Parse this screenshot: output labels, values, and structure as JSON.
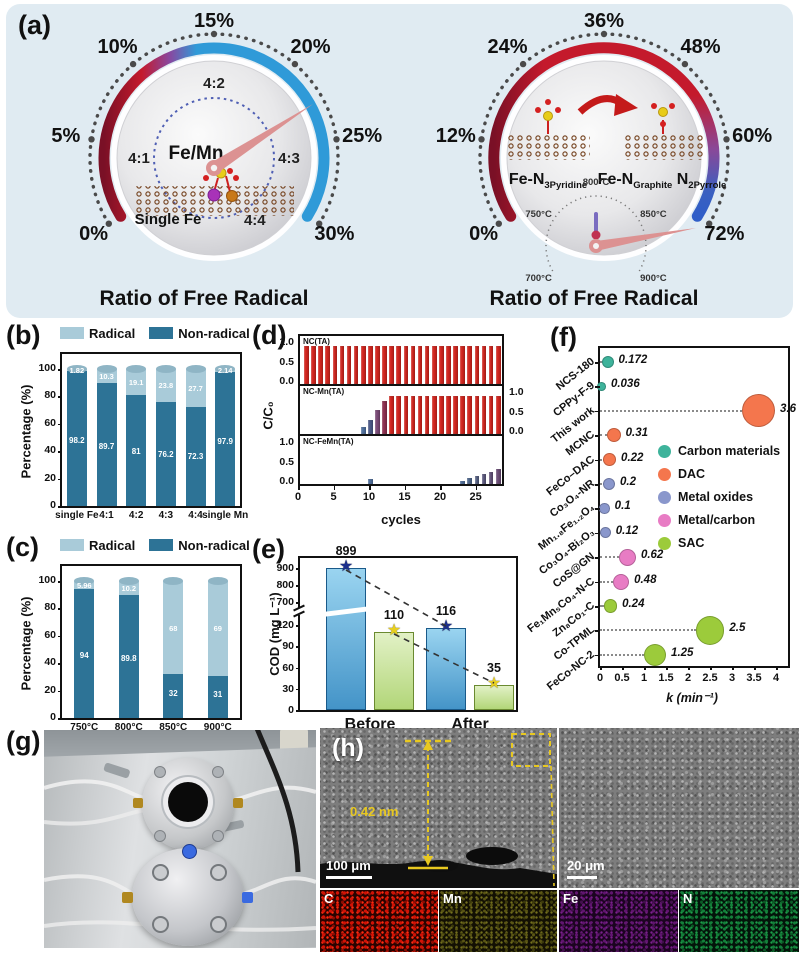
{
  "panel_labels": {
    "a": "(a)",
    "b": "(b)",
    "c": "(c)",
    "d": "(d)",
    "e": "(e)",
    "f": "(f)",
    "g": "(g)",
    "h": "(h)"
  },
  "gauges": {
    "left": {
      "title": "Ratio of Free Radical",
      "outer_ticks": [
        "0%",
        "5%",
        "10%",
        "15%",
        "20%",
        "25%",
        "30%"
      ],
      "inner_ticks": [
        "4:1",
        "4:2",
        "4:3",
        "4:4"
      ],
      "center_label": "Fe/Mn",
      "bottom_label": "Single Fe"
    },
    "right": {
      "title": "Ratio of Free Radical",
      "outer_ticks": [
        "0%",
        "12%",
        "24%",
        "36%",
        "48%",
        "60%",
        "72%"
      ],
      "site1": {
        "pre": "Fe-N",
        "sub": "3Pyridine"
      },
      "site2": {
        "pre": "Fe-N",
        "sub": "Graphite",
        "pre2": " N",
        "sub2": "2Pyrrole"
      },
      "temps": [
        "700°C",
        "750°C",
        "800°C",
        "850°C",
        "900°C"
      ]
    }
  },
  "chart_data": [
    {
      "panel": "b",
      "type": "bar",
      "stacked": true,
      "categories": [
        "single Fe",
        "4:1",
        "4:2",
        "4:3",
        "4:4",
        "single Mn"
      ],
      "series": [
        {
          "name": "Radical",
          "values": [
            1.82,
            10.3,
            19.1,
            23.8,
            27.7,
            2.14
          ],
          "color": "#a9cbd9"
        },
        {
          "name": "Non-radical",
          "values": [
            98.2,
            89.7,
            81,
            76.2,
            72.3,
            97.9
          ],
          "color": "#2d7396"
        }
      ],
      "value_labels_radical": [
        "1.82",
        "10.3",
        "19.1",
        "23.8",
        "27.7",
        "2.14"
      ],
      "value_labels_nonradical": [
        "98.2",
        "89.7",
        "81",
        "76.2",
        "72.3",
        "97.9"
      ],
      "ylabel": "Percentage (%)",
      "ylim": [
        0,
        100
      ],
      "yticks": [
        0,
        20,
        40,
        60,
        80,
        100
      ]
    },
    {
      "panel": "c",
      "type": "bar",
      "stacked": true,
      "categories": [
        "750°C",
        "800°C",
        "850°C",
        "900°C"
      ],
      "series": [
        {
          "name": "Radical",
          "values": [
            5.96,
            10.2,
            68,
            69
          ],
          "color": "#a9cbd9"
        },
        {
          "name": "Non-radical",
          "values": [
            94,
            89.8,
            32,
            31
          ],
          "color": "#2d7396"
        }
      ],
      "value_labels_radical": [
        "5.96",
        "10.2",
        "68",
        "69"
      ],
      "value_labels_nonradical": [
        "94",
        "89.8",
        "32",
        "31"
      ],
      "ylabel": "Percentage (%)",
      "ylim": [
        0,
        100
      ],
      "yticks": [
        0,
        20,
        40,
        60,
        80,
        100
      ]
    },
    {
      "panel": "d",
      "type": "bar",
      "xlabel": "cycles",
      "ylabel": "C/C₀",
      "xticks": [
        0,
        5,
        10,
        15,
        20,
        25
      ],
      "yticks": [
        1,
        0.5,
        0
      ],
      "xlim": [
        0,
        29
      ],
      "ylim": [
        0,
        1.08
      ],
      "subplots": [
        {
          "label": "NC(TA)",
          "tick_side": "left",
          "uniform": {
            "from": 1,
            "to": 28,
            "value": 0.97,
            "color": "#d3261f"
          },
          "bars": []
        },
        {
          "label": "NC-Mn(TA)",
          "tick_side": "right",
          "uniform": {
            "from": 13,
            "to": 28,
            "value": 0.97,
            "color": "#d3261f"
          },
          "bars": [
            [
              9,
              0.18,
              "#51719f"
            ],
            [
              10,
              0.35,
              "#4c5a89"
            ],
            [
              11,
              0.62,
              "#7b4a77"
            ],
            [
              12,
              0.85,
              "#8e3050"
            ]
          ]
        },
        {
          "label": "NC-FeMn(TA)",
          "tick_side": "left",
          "uniform": null,
          "bars": [
            [
              10,
              0.13,
              "#51719f"
            ],
            [
              23,
              0.08,
              "#51719f"
            ],
            [
              24,
              0.16,
              "#50698f"
            ],
            [
              25,
              0.21,
              "#566184"
            ],
            [
              26,
              0.25,
              "#5d5a80"
            ],
            [
              27,
              0.3,
              "#64537b"
            ],
            [
              28,
              0.38,
              "#6b4c76"
            ]
          ]
        }
      ]
    },
    {
      "panel": "e",
      "type": "bar",
      "groups": [
        "Before",
        "After"
      ],
      "series": [
        {
          "values": [
            899,
            116
          ],
          "color_top": "#9ad4f0",
          "color_bottom": "#4494c8",
          "border": "#1a5a8a",
          "star_color": "#1c2f8c"
        },
        {
          "values": [
            110,
            35
          ],
          "color_top": "#e2f1c6",
          "color_bottom": "#b2d678",
          "border": "#6a8a30",
          "star_color": "#e8cf1f"
        }
      ],
      "value_labels": [
        "899",
        "110",
        "116",
        "35"
      ],
      "ylabel": "COD (mg L⁻¹)",
      "yticks_lower": [
        0,
        30,
        60,
        90,
        120
      ],
      "yticks_upper": [
        700,
        800,
        900
      ],
      "axis_break": true
    },
    {
      "panel": "f",
      "type": "scatter",
      "xlabel": "k (min⁻¹)",
      "xticks": [
        "0",
        "0.5",
        "1",
        "1.5",
        "2",
        "2.5",
        "3",
        "3.5",
        "4"
      ],
      "xlim": [
        0,
        4
      ],
      "categories": [
        "NCS-180",
        "CPPy-F-9",
        "This work",
        "MCNC",
        "FeCo–DAC",
        "Co₃O₄-NR",
        "Mn₁.₈Fe₁.₂O₄",
        "Co₃O₄-Bi₂O₃",
        "CoS@GN",
        "Fe₁Mn₅Co₄-N-C",
        "Zn₈Co₁-C",
        "Co-TPML",
        "FeCo-NC-2"
      ],
      "values": [
        0.172,
        0.036,
        3.6,
        0.31,
        0.22,
        0.2,
        0.1,
        0.12,
        0.62,
        0.48,
        0.24,
        2.5,
        1.25
      ],
      "value_labels": [
        "0.172",
        "0.036",
        "3.6",
        "0.31",
        "0.22",
        "0.2",
        "0.1",
        "0.12",
        "0.62",
        "0.48",
        "0.24",
        "2.5",
        "1.25"
      ],
      "groups": [
        "carbon",
        "carbon",
        "dac",
        "dac",
        "dac",
        "oxide",
        "oxide",
        "oxide",
        "mc",
        "mc",
        "sac",
        "sac",
        "sac"
      ],
      "legend": [
        {
          "label": "Carbon materials",
          "key": "carbon",
          "color": "#3eb39b"
        },
        {
          "label": "DAC",
          "key": "dac",
          "color": "#f4764d"
        },
        {
          "label": "Metal oxides",
          "key": "oxide",
          "color": "#8a97cc"
        },
        {
          "label": "Metal/carbon",
          "key": "mc",
          "color": "#e87cc4"
        },
        {
          "label": "SAC",
          "key": "sac",
          "color": "#9ccb3b"
        }
      ]
    }
  ],
  "sem": {
    "thickness_annotation": "0.42 nm",
    "scalebar_left": "100 μm",
    "scalebar_right": "20 μm",
    "eds_labels": [
      "C",
      "Mn",
      "Fe",
      "N"
    ]
  }
}
